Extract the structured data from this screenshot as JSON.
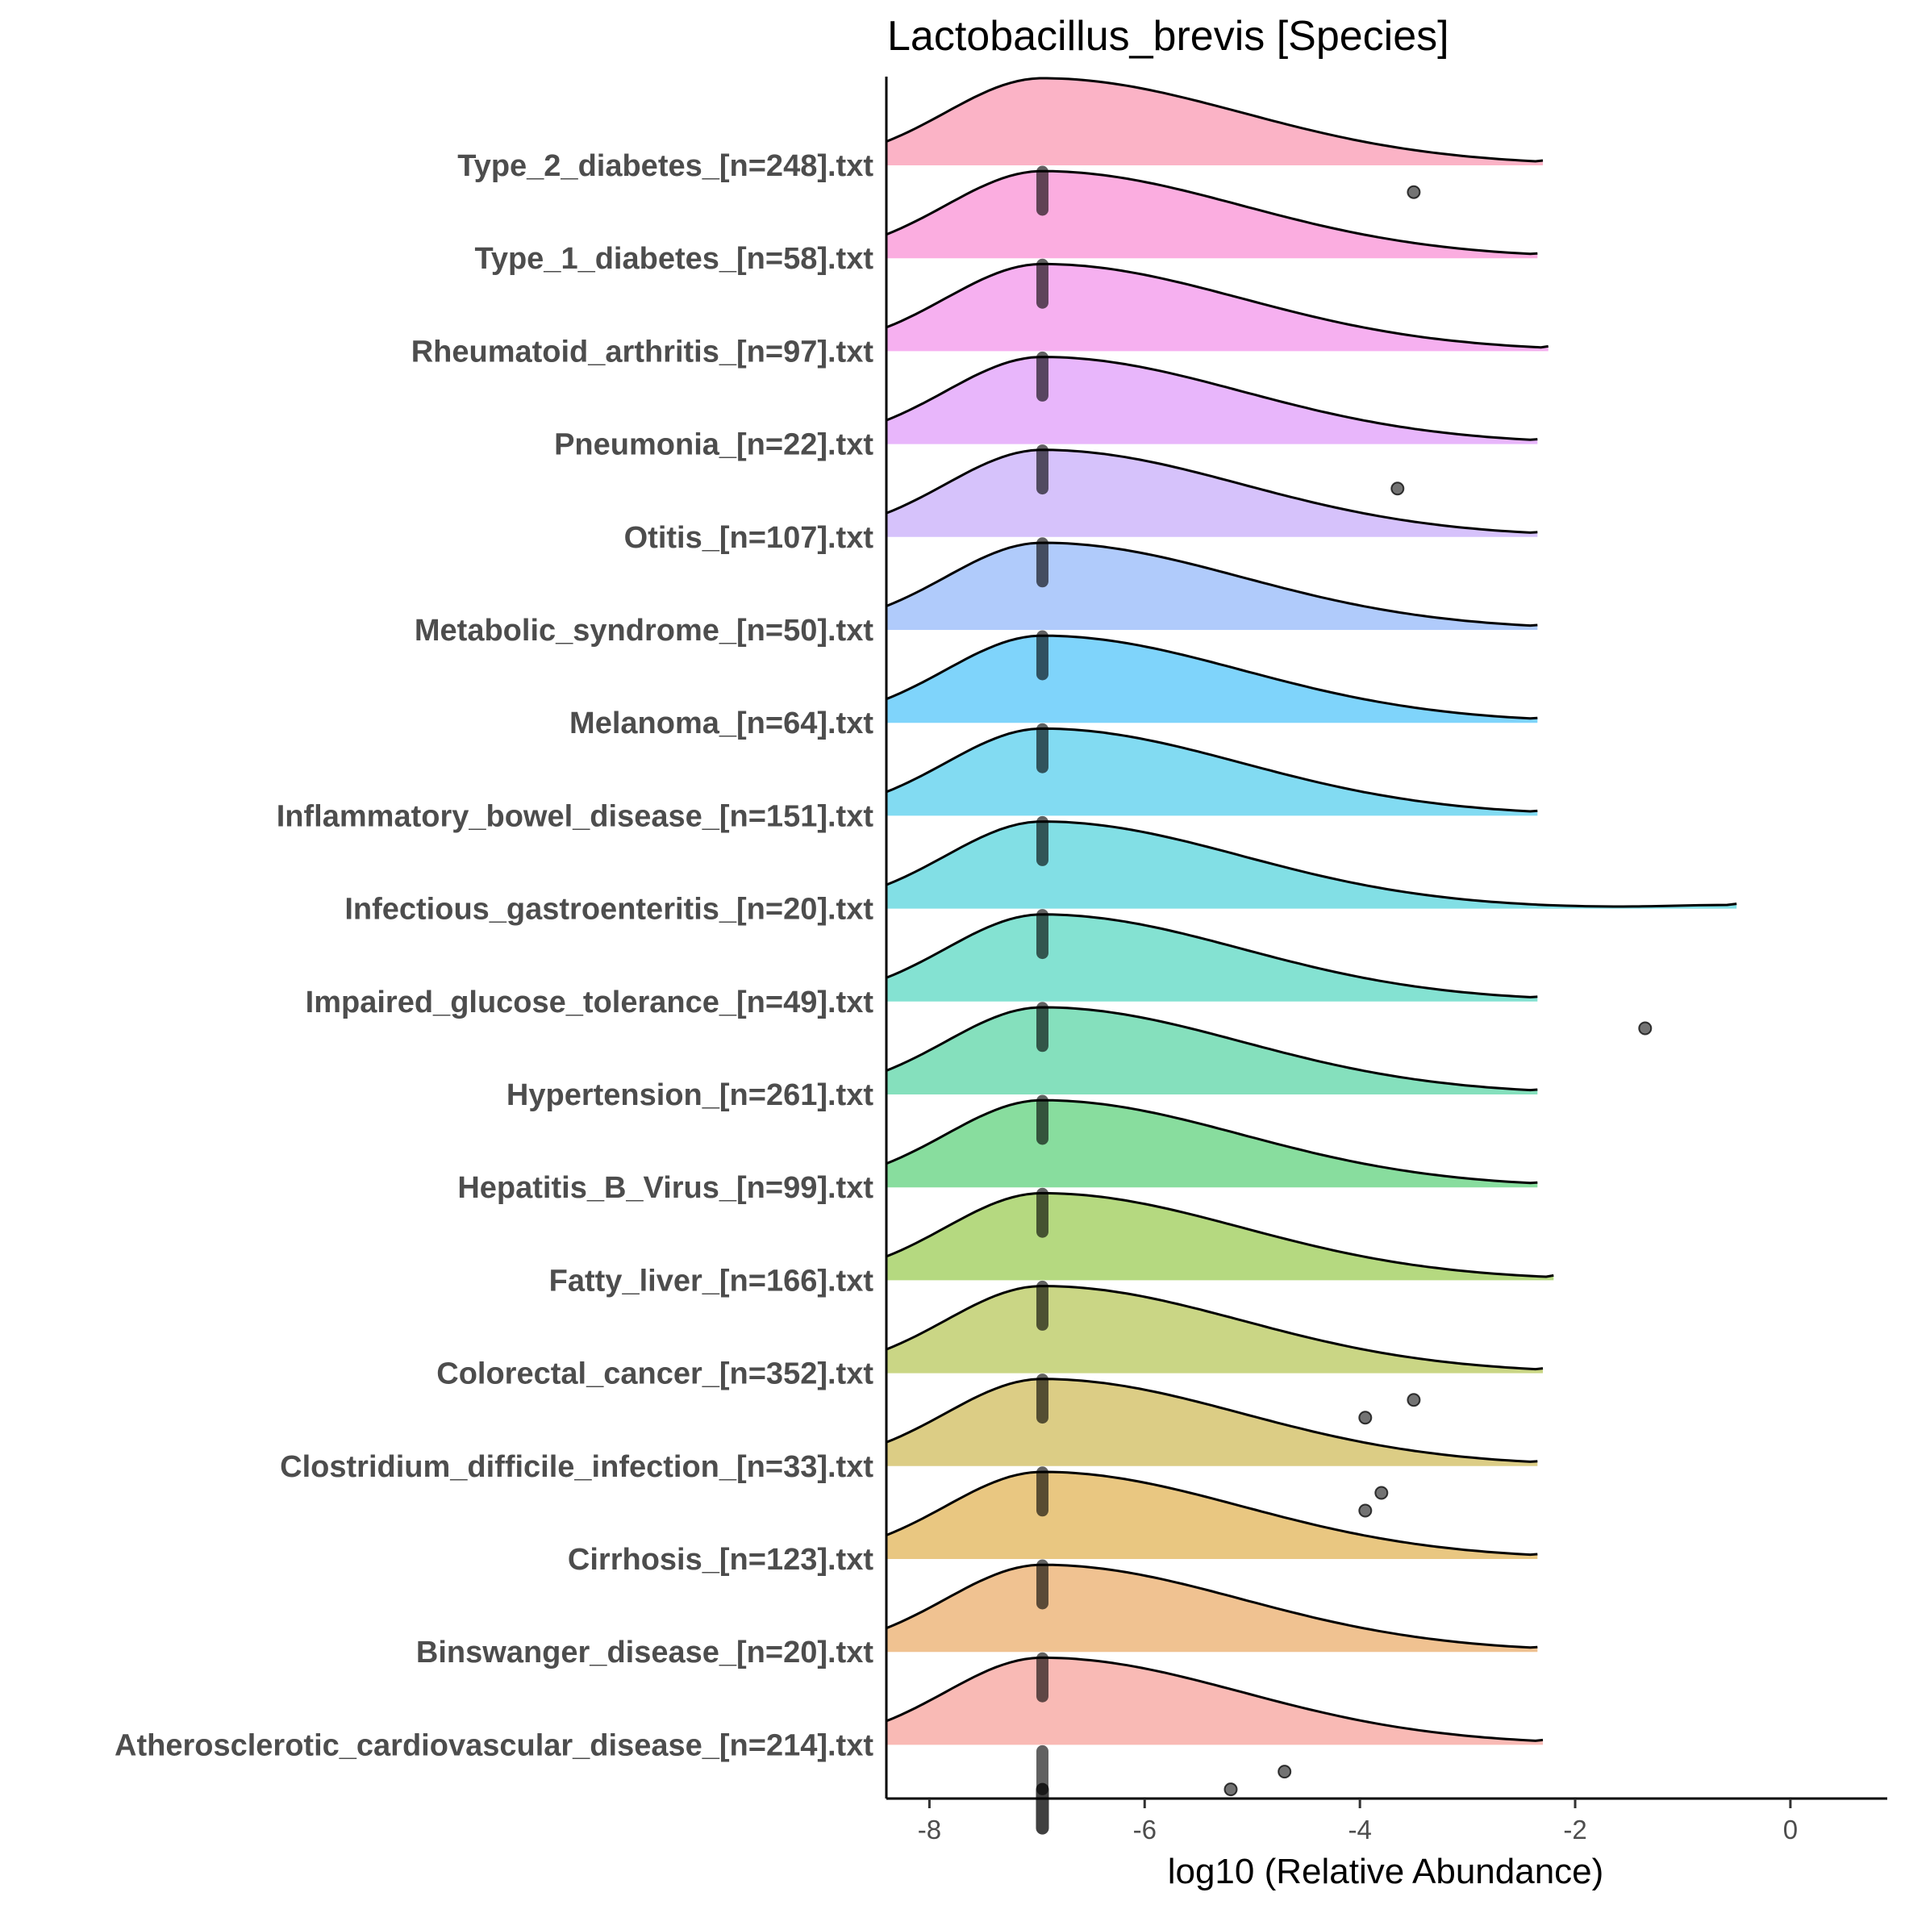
{
  "chart_data": {
    "type": "ridgeline",
    "title": "Lactobacillus_brevis [Species]",
    "xlabel": "log10 (Relative Abundance)",
    "ylabel": "",
    "xlim": [
      -8.4,
      0.9
    ],
    "xticks": [
      -8,
      -6,
      -4,
      -2,
      0
    ],
    "mode_x": -6.95,
    "categories": [
      "Type_2_diabetes_[n=248].txt",
      "Type_1_diabetes_[n=58].txt",
      "Rheumatoid_arthritis_[n=97].txt",
      "Pneumonia_[n=22].txt",
      "Otitis_[n=107].txt",
      "Metabolic_syndrome_[n=50].txt",
      "Melanoma_[n=64].txt",
      "Inflammatory_bowel_disease_[n=151].txt",
      "Infectious_gastroenteritis_[n=20].txt",
      "Impaired_glucose_tolerance_[n=49].txt",
      "Hypertension_[n=261].txt",
      "Hepatitis_B_Virus_[n=99].txt",
      "Fatty_liver_[n=166].txt",
      "Colorectal_cancer_[n=352].txt",
      "Clostridium_difficile_infection_[n=33].txt",
      "Cirrhosis_[n=123].txt",
      "Binswanger_disease_[n=20].txt",
      "Atherosclerotic_cardiovascular_disease_[n=214].txt"
    ],
    "colors": [
      "#fbb3c6",
      "#fbade0",
      "#f6b0f0",
      "#e8b6fb",
      "#d6c2fb",
      "#b0cbfb",
      "#7fd4fb",
      "#82dbf2",
      "#82dfe5",
      "#84e2d2",
      "#85e0bd",
      "#88dd9e",
      "#b5d980",
      "#cad685",
      "#dccd85",
      "#e9c781",
      "#f0c291",
      "#f9bab5"
    ],
    "tail_end_x": [
      -2.3,
      -2.35,
      -2.25,
      -2.35,
      -2.35,
      -2.35,
      -2.35,
      -2.35,
      -0.5,
      -2.35,
      -2.35,
      -2.35,
      -2.2,
      -2.3,
      -2.35,
      -2.35,
      -2.35,
      -2.3
    ],
    "outliers": [
      {
        "category": "Type_2_diabetes_[n=248].txt",
        "x": -3.5
      },
      {
        "category": "Pneumonia_[n=22].txt",
        "x": -3.65
      },
      {
        "category": "Impaired_glucose_tolerance_[n=49].txt",
        "x": -1.35
      },
      {
        "category": "Colorectal_cancer_[n=352].txt",
        "x": -3.95
      },
      {
        "category": "Colorectal_cancer_[n=352].txt",
        "x": -3.5
      },
      {
        "category": "Clostridium_difficile_infection_[n=33].txt",
        "x": -3.95
      },
      {
        "category": "Clostridium_difficile_infection_[n=33].txt",
        "x": -3.8
      },
      {
        "category": "Atherosclerotic_cardiovascular_disease_[n=214].txt",
        "x": -5.2
      },
      {
        "category": "Atherosclerotic_cardiovascular_disease_[n=214].txt",
        "x": -4.7
      }
    ],
    "grid": false,
    "legend": "none"
  }
}
